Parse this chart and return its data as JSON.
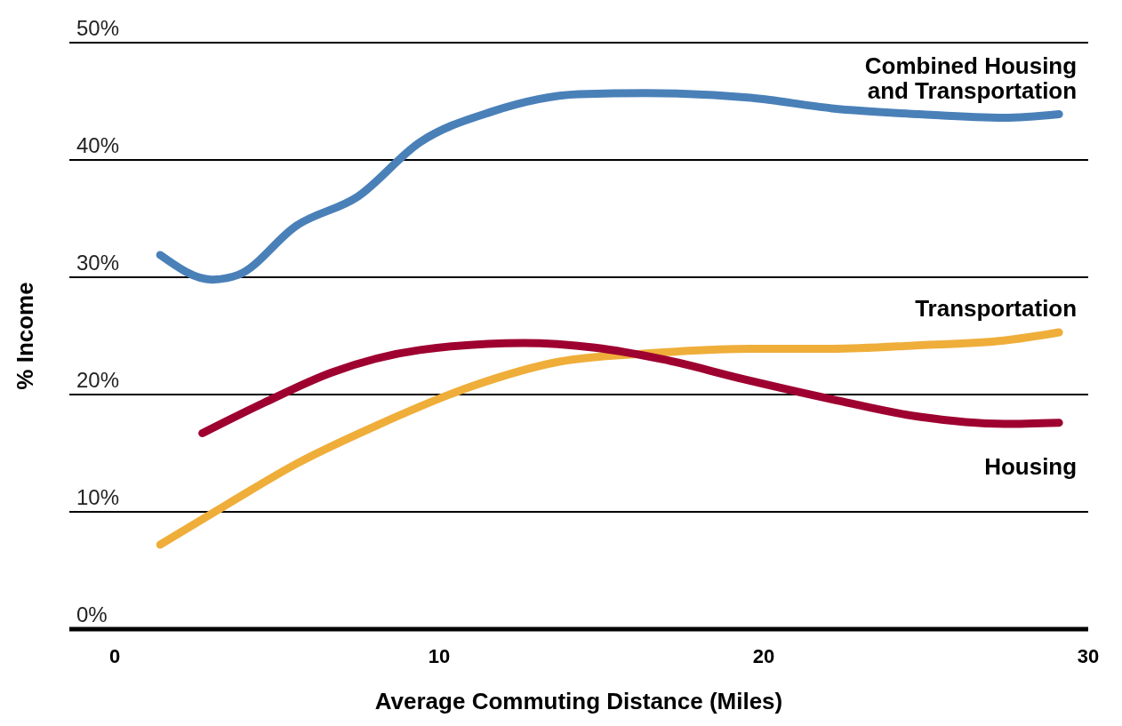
{
  "chart_data": {
    "type": "line",
    "xlabel": "Average Commuting Distance (Miles)",
    "ylabel": "% Income",
    "xlim": [
      -1.4,
      30
    ],
    "xticks": [
      0,
      10,
      20,
      30
    ],
    "ylim": [
      0,
      50
    ],
    "yticks": [
      {
        "value": 0,
        "label": "0%"
      },
      {
        "value": 10,
        "label": "10%"
      },
      {
        "value": 20,
        "label": "20%"
      },
      {
        "value": 30,
        "label": "30%"
      },
      {
        "value": 40,
        "label": "40%"
      },
      {
        "value": 50,
        "label": "50%"
      }
    ],
    "grid": "y",
    "legend": false,
    "marker": "none",
    "line_style": "solid",
    "series": [
      {
        "name": "Combined Housing and Transportation",
        "color": "#4a80b8",
        "x": [
          1.4,
          3.0,
          3.8,
          5.6,
          7.5,
          9.4,
          11.6,
          14.3,
          16.4,
          19.6,
          22.1,
          24.8,
          27.4,
          29.1
        ],
        "values": [
          31.9,
          29.8,
          30.2,
          34.4,
          36.9,
          41.5,
          44.1,
          45.6,
          45.7,
          45.3,
          44.4,
          43.9,
          43.6,
          43.9
        ]
      },
      {
        "name": "Transportation",
        "color": "#efae3a",
        "x": [
          1.4,
          3.5,
          5.6,
          8.1,
          11.0,
          13.7,
          16.4,
          19.6,
          22.1,
          24.8,
          27.4,
          29.1
        ],
        "values": [
          7.2,
          10.7,
          14.1,
          17.4,
          20.7,
          22.8,
          23.5,
          23.9,
          23.9,
          24.2,
          24.6,
          25.3
        ]
      },
      {
        "name": "Housing",
        "color": "#9e0030",
        "x": [
          2.7,
          4.6,
          6.7,
          9.4,
          12.6,
          14.8,
          16.9,
          19.4,
          22.1,
          24.8,
          27.4,
          29.1
        ],
        "values": [
          16.7,
          19.3,
          21.9,
          23.8,
          24.4,
          24.0,
          23.0,
          21.3,
          19.6,
          18.1,
          17.5,
          17.6
        ]
      }
    ]
  }
}
